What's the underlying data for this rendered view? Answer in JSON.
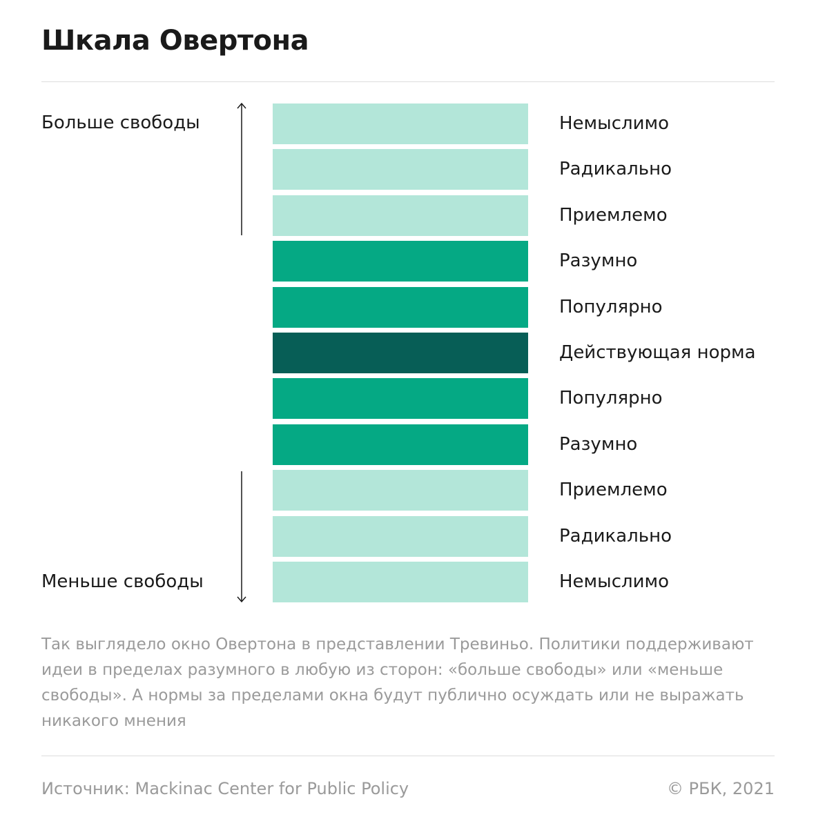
{
  "header": {
    "title": "Шкала Овертона"
  },
  "side_labels": {
    "top": "Больше свободы",
    "bottom": "Меньше свободы"
  },
  "levels": [
    {
      "label": "Немыслимо",
      "color": "#b3e6d9"
    },
    {
      "label": "Радикально",
      "color": "#b3e6d9"
    },
    {
      "label": "Приемлемо",
      "color": "#b3e6d9"
    },
    {
      "label": "Разумно",
      "color": "#05a984"
    },
    {
      "label": "Популярно",
      "color": "#05a984"
    },
    {
      "label": "Действующая норма",
      "color": "#075e56"
    },
    {
      "label": "Популярно",
      "color": "#05a984"
    },
    {
      "label": "Разумно",
      "color": "#05a984"
    },
    {
      "label": "Приемлемо",
      "color": "#b3e6d9"
    },
    {
      "label": "Радикально",
      "color": "#b3e6d9"
    },
    {
      "label": "Немыслимо",
      "color": "#b3e6d9"
    }
  ],
  "note": [
    "Так выглядело окно Овертона в представлении Тревиньо. Политики поддерживают",
    "идеи в пределах разумного в любую из сторон: «больше свободы» или «меньше",
    "свободы». А нормы за пределами окна будут публично осуждать или не выражать",
    "никакого мнения"
  ],
  "footer": {
    "source": "Источник: Mackinac Center for Public Policy",
    "copyright": "© РБК, 2021"
  }
}
